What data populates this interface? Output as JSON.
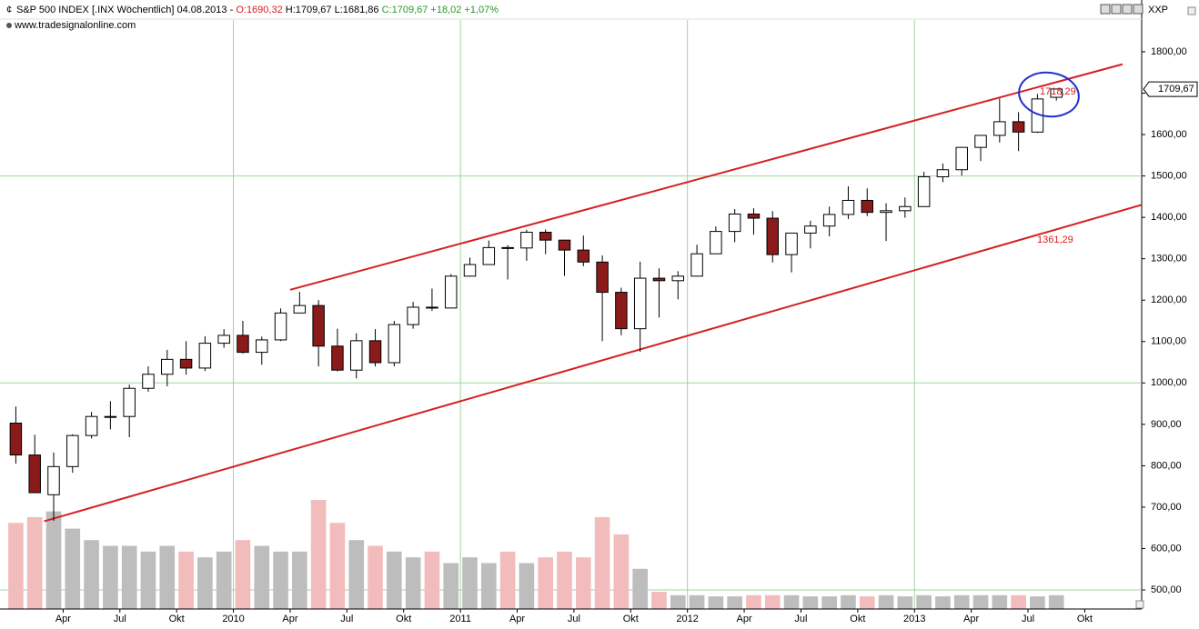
{
  "chart_data": {
    "type": "candlestick",
    "header": {
      "title": "S&P 500 INDEX [.INX  Wöchentlich] 04.08.2013 -",
      "open": "O:1690,32",
      "high": "H:1709,67",
      "low": "L:1681,86",
      "close": "C:1709,67 +18,02 +1,07%"
    },
    "source": "www.tradesignalonline.com",
    "symbol": "XXP",
    "price_label": {
      "value": 1709.67,
      "label": "1709,67"
    },
    "annotations": [
      "1718,29",
      "1361,29"
    ],
    "x": [
      "2009-01",
      "2009-02",
      "2009-03",
      "2009-04",
      "2009-05",
      "2009-06",
      "2009-07",
      "2009-08",
      "2009-09",
      "2009-10",
      "2009-11",
      "2009-12",
      "2010-01",
      "2010-02",
      "2010-03",
      "2010-04",
      "2010-05",
      "2010-06",
      "2010-07",
      "2010-08",
      "2010-09",
      "2010-10",
      "2010-11",
      "2010-12",
      "2011-01",
      "2011-02",
      "2011-03",
      "2011-04",
      "2011-05",
      "2011-06",
      "2011-07",
      "2011-08",
      "2011-09",
      "2011-10",
      "2011-11",
      "2011-12",
      "2012-01",
      "2012-02",
      "2012-03",
      "2012-04",
      "2012-05",
      "2012-06",
      "2012-07",
      "2012-08",
      "2012-09",
      "2012-10",
      "2012-11",
      "2012-12",
      "2013-01",
      "2013-02",
      "2013-03",
      "2013-04",
      "2013-05",
      "2013-06",
      "2013-07",
      "2013-08"
    ],
    "open": [
      903,
      826,
      730,
      798,
      873,
      919,
      919,
      987,
      1021,
      1057,
      1036,
      1096,
      1115,
      1074,
      1104,
      1169,
      1187,
      1089,
      1031,
      1102,
      1049,
      1141,
      1183,
      1181,
      1258,
      1286,
      1327,
      1326,
      1364,
      1345,
      1321,
      1292,
      1219,
      1131,
      1253,
      1247,
      1258,
      1312,
      1366,
      1408,
      1398,
      1310,
      1362,
      1379,
      1407,
      1441,
      1412,
      1416,
      1426,
      1498,
      1515,
      1569,
      1598,
      1631,
      1606,
      1690
    ],
    "high": [
      943,
      875,
      832,
      876,
      930,
      956,
      996,
      1040,
      1080,
      1101,
      1113,
      1130,
      1150,
      1112,
      1180,
      1220,
      1200,
      1131,
      1120,
      1130,
      1150,
      1196,
      1228,
      1263,
      1303,
      1344,
      1333,
      1370,
      1371,
      1346,
      1356,
      1308,
      1230,
      1293,
      1277,
      1270,
      1334,
      1378,
      1420,
      1422,
      1415,
      1363,
      1392,
      1426,
      1475,
      1470,
      1434,
      1448,
      1510,
      1530,
      1570,
      1598,
      1687,
      1654,
      1698,
      1710
    ],
    "low": [
      805,
      735,
      667,
      783,
      866,
      888,
      869,
      979,
      992,
      1020,
      1029,
      1085,
      1071,
      1044,
      1101,
      1170,
      1040,
      1028,
      1011,
      1040,
      1040,
      1131,
      1174,
      1181,
      1257,
      1289,
      1250,
      1295,
      1311,
      1259,
      1282,
      1101,
      1115,
      1075,
      1158,
      1202,
      1258,
      1312,
      1340,
      1358,
      1291,
      1267,
      1325,
      1354,
      1396,
      1403,
      1343,
      1399,
      1426,
      1485,
      1501,
      1536,
      1581,
      1560,
      1604,
      1682
    ],
    "close": [
      826,
      735,
      798,
      873,
      919,
      919,
      987,
      1021,
      1057,
      1036,
      1096,
      1115,
      1074,
      1104,
      1169,
      1187,
      1089,
      1031,
      1102,
      1049,
      1141,
      1183,
      1181,
      1258,
      1286,
      1327,
      1326,
      1364,
      1345,
      1321,
      1292,
      1219,
      1131,
      1253,
      1247,
      1258,
      1312,
      1366,
      1408,
      1398,
      1310,
      1362,
      1379,
      1407,
      1441,
      1412,
      1416,
      1426,
      1498,
      1515,
      1569,
      1598,
      1631,
      1606,
      1686,
      1710
    ],
    "volume": [
      75,
      80,
      85,
      70,
      60,
      55,
      55,
      50,
      55,
      50,
      45,
      50,
      60,
      55,
      50,
      50,
      95,
      75,
      60,
      55,
      50,
      45,
      50,
      40,
      45,
      40,
      50,
      40,
      45,
      50,
      45,
      80,
      65,
      35,
      15,
      12,
      12,
      11,
      11,
      12,
      12,
      12,
      11,
      11,
      12,
      11,
      12,
      11,
      12,
      11,
      12,
      12,
      12,
      12,
      11,
      12
    ],
    "up_color": "#ffffff",
    "down_color": "#8b1a1a",
    "vol_up_color": "#bdbdbd",
    "vol_down_color": "#f2bcbc",
    "channel": {
      "color": "#d42020",
      "upper": {
        "x": [
          "2010-04",
          "2013-12"
        ],
        "y": [
          1225,
          1770
        ]
      },
      "lower": {
        "x": [
          "2009-03",
          "2013-12"
        ],
        "y": [
          666,
          1417
        ]
      }
    },
    "xlim": [
      "2009-01",
      "2013-12"
    ],
    "ylim": [
      454,
      1925
    ],
    "yticks": [
      {
        "value": 500,
        "label": "500,00"
      },
      {
        "value": 600,
        "label": "600,00"
      },
      {
        "value": 700,
        "label": "700,00"
      },
      {
        "value": 800,
        "label": "800,00"
      },
      {
        "value": 900,
        "label": "900,00"
      },
      {
        "value": 1000,
        "label": "1000,00"
      },
      {
        "value": 1100,
        "label": "1100,00"
      },
      {
        "value": 1200,
        "label": "1200,00"
      },
      {
        "value": 1300,
        "label": "1300,00"
      },
      {
        "value": 1400,
        "label": "1400,00"
      },
      {
        "value": 1500,
        "label": "1500,00"
      },
      {
        "value": 1600,
        "label": "1600,00"
      },
      {
        "value": 1700,
        "label": "1700,00"
      },
      {
        "value": 1800,
        "label": "1800,00"
      }
    ],
    "xticks": [
      {
        "value": "2009-04",
        "label": "Apr"
      },
      {
        "value": "2009-07",
        "label": "Jul"
      },
      {
        "value": "2009-10",
        "label": "Okt"
      },
      {
        "value": "2010-01",
        "label": "2010"
      },
      {
        "value": "2010-04",
        "label": "Apr"
      },
      {
        "value": "2010-07",
        "label": "Jul"
      },
      {
        "value": "2010-10",
        "label": "Okt"
      },
      {
        "value": "2011-01",
        "label": "2011"
      },
      {
        "value": "2011-04",
        "label": "Apr"
      },
      {
        "value": "2011-07",
        "label": "Jul"
      },
      {
        "value": "2011-10",
        "label": "Okt"
      },
      {
        "value": "2012-01",
        "label": "2012"
      },
      {
        "value": "2012-04",
        "label": "Apr"
      },
      {
        "value": "2012-07",
        "label": "Jul"
      },
      {
        "value": "2012-10",
        "label": "Okt"
      },
      {
        "value": "2013-01",
        "label": "2013"
      },
      {
        "value": "2013-04",
        "label": "Apr"
      },
      {
        "value": "2013-07",
        "label": "Jul"
      },
      {
        "value": "2013-10",
        "label": "Okt"
      }
    ],
    "ygrid": [
      500,
      1000,
      1500
    ],
    "xgrid": [
      "2010-01",
      "2011-01",
      "2012-01",
      "2013-01"
    ],
    "grid_color": "#9fd49f"
  }
}
